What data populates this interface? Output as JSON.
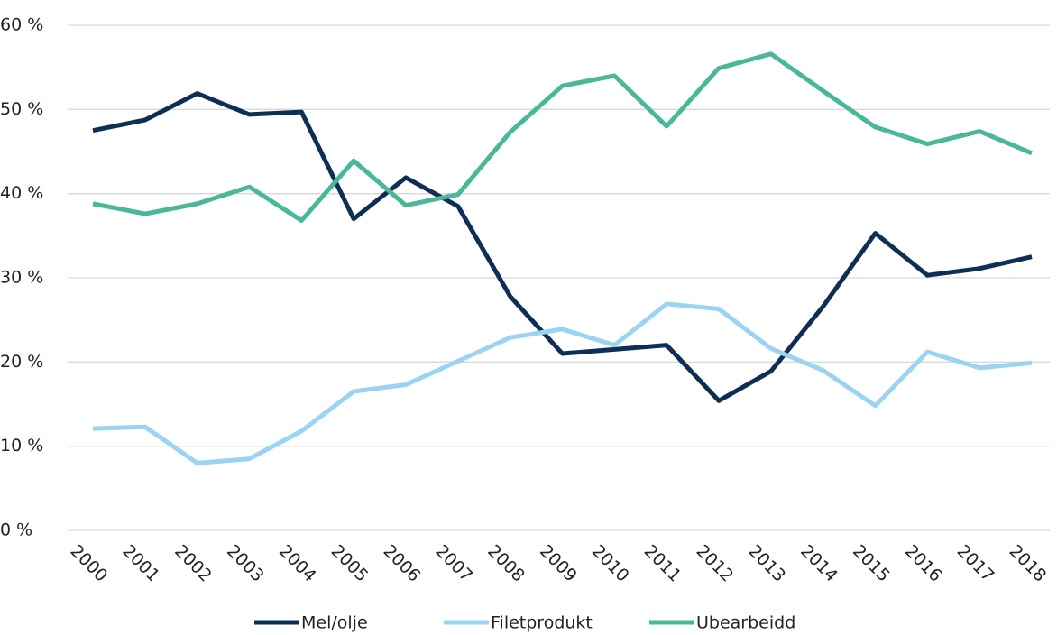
{
  "chart_data": {
    "type": "line",
    "categories": [
      "2000",
      "2001",
      "2002",
      "2003",
      "2004",
      "2005",
      "2006",
      "2007",
      "2008",
      "2009",
      "2010",
      "2011",
      "2012",
      "2013",
      "2014",
      "2015",
      "2016",
      "2017",
      "2018"
    ],
    "series": [
      {
        "name": "Mel/olje",
        "color": "#0d2f55",
        "values": [
          47.5,
          48.75,
          51.9,
          49.4,
          49.7,
          37.0,
          41.9,
          38.5,
          27.8,
          21.0,
          21.5,
          22.0,
          15.4,
          18.9,
          26.6,
          35.3,
          30.3,
          31.1,
          32.5
        ]
      },
      {
        "name": "Filetprodukt",
        "color": "#9ad4f2",
        "values": [
          12.1,
          12.3,
          8.0,
          8.5,
          11.8,
          16.5,
          17.3,
          20.1,
          22.9,
          23.9,
          22.0,
          26.9,
          26.3,
          21.6,
          19.0,
          14.8,
          21.2,
          19.3,
          19.9
        ]
      },
      {
        "name": "Ubearbeidd",
        "color": "#48b79a",
        "values": [
          38.8,
          37.6,
          38.8,
          40.8,
          36.8,
          43.9,
          38.6,
          39.9,
          47.3,
          52.8,
          54.0,
          48.0,
          54.9,
          56.6,
          52.2,
          47.9,
          45.9,
          47.4,
          44.8
        ]
      }
    ],
    "ylim": [
      0,
      60
    ],
    "yticks": [
      {
        "value": 0,
        "label": "0 %"
      },
      {
        "value": 10,
        "label": "10 %"
      },
      {
        "value": 20,
        "label": "20 %"
      },
      {
        "value": 30,
        "label": "30 %"
      },
      {
        "value": 40,
        "label": "40 %"
      },
      {
        "value": 50,
        "label": "50 %"
      },
      {
        "value": 60,
        "label": "60 %"
      }
    ],
    "grid": true,
    "legend": "bottom"
  }
}
